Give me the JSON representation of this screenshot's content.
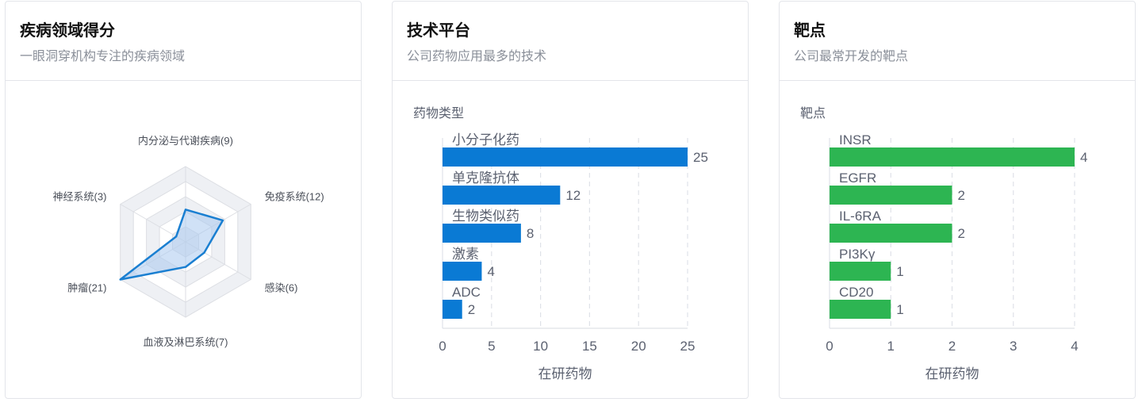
{
  "cards": {
    "disease": {
      "title": "疾病领域得分",
      "subtitle": "一眼洞穿机构专注的疾病领域"
    },
    "tech": {
      "title": "技术平台",
      "subtitle": "公司药物应用最多的技术"
    },
    "target": {
      "title": "靶点",
      "subtitle": "公司最常开发的靶点"
    }
  },
  "chart_data": [
    {
      "type": "radar",
      "axes": [
        "内分泌与代谢疾病",
        "免疫系统",
        "感染",
        "血液及淋巴系统",
        "肿瘤",
        "神经系统"
      ],
      "axis_labels": [
        "内分泌与代谢疾病(9)",
        "免疫系统(12)",
        "感染(6)",
        "血液及淋巴系统(7)",
        "肿瘤(21)",
        "神经系统(3)"
      ],
      "values": [
        9,
        12,
        6,
        7,
        21,
        3
      ],
      "range": [
        0,
        21
      ],
      "color": "#1a7fd1",
      "fill_color": "#a9c9ee"
    },
    {
      "type": "bar",
      "orientation": "horizontal",
      "ylabel": "药物类型",
      "xlabel": "在研药物",
      "categories": [
        "小分子化药",
        "单克隆抗体",
        "生物类似药",
        "激素",
        "ADC"
      ],
      "values": [
        25,
        12,
        8,
        4,
        2
      ],
      "xlim": [
        0,
        25
      ],
      "xticks": [
        0,
        5,
        10,
        15,
        20,
        25
      ],
      "color": "#0a7ad4",
      "grid": true
    },
    {
      "type": "bar",
      "orientation": "horizontal",
      "ylabel": "靶点",
      "xlabel": "在研药物",
      "categories": [
        "INSR",
        "EGFR",
        "IL-6RA",
        "PI3Kγ",
        "CD20"
      ],
      "values": [
        4,
        2,
        2,
        1,
        1
      ],
      "xlim": [
        0,
        4
      ],
      "xticks": [
        0,
        1,
        2,
        3,
        4
      ],
      "color": "#2db552",
      "grid": true
    }
  ]
}
